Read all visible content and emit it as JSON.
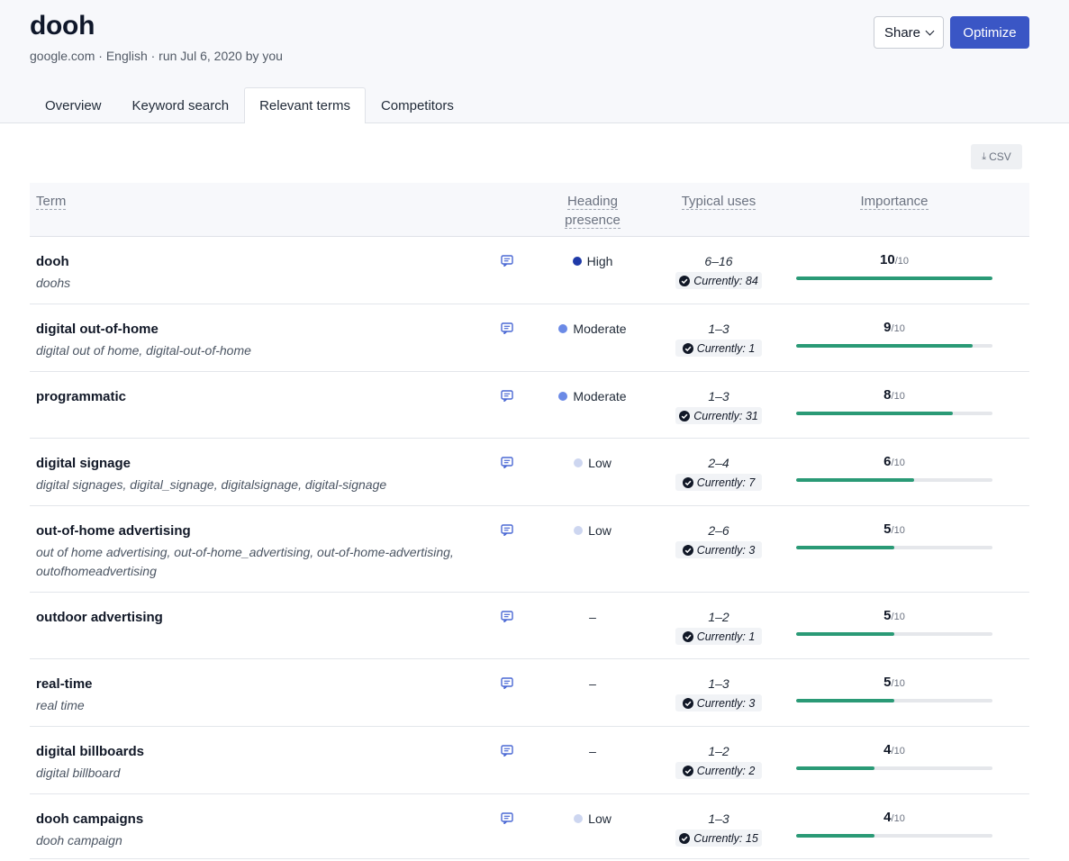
{
  "header": {
    "title": "dooh",
    "subtitle": "google.com · English · run Jul 6, 2020 by you",
    "share_label": "Share",
    "optimize_label": "Optimize",
    "accent_color": "#3a56c5"
  },
  "tabs": [
    {
      "label": "Overview",
      "active": false
    },
    {
      "label": "Keyword search",
      "active": false
    },
    {
      "label": "Relevant terms",
      "active": true
    },
    {
      "label": "Competitors",
      "active": false
    }
  ],
  "toolbar": {
    "csv_label": "CSV",
    "csv_icon": "download-icon"
  },
  "table": {
    "columns": {
      "term": "Term",
      "heading_line1": "Heading",
      "heading_line2": "presence",
      "uses": "Typical uses",
      "importance": "Importance"
    },
    "importance_max_label": "/10",
    "importance_max": 10,
    "heading_colors": {
      "High": "#1f3aa8",
      "Moderate": "#6b8ae6",
      "Low": "#cdd6f0"
    },
    "rows": [
      {
        "term": "dooh",
        "variants": "doohs",
        "heading": "High",
        "range": "6–16",
        "current": "Currently: 84",
        "importance": 10
      },
      {
        "term": "digital out-of-home",
        "variants": "digital out of home, digital-out-of-home",
        "heading": "Moderate",
        "range": "1–3",
        "current": "Currently: 1",
        "importance": 9
      },
      {
        "term": "programmatic",
        "variants": "",
        "heading": "Moderate",
        "range": "1–3",
        "current": "Currently: 31",
        "importance": 8
      },
      {
        "term": "digital signage",
        "variants": "digital signages, digital_signage, digitalsignage, digital-signage",
        "heading": "Low",
        "range": "2–4",
        "current": "Currently: 7",
        "importance": 6
      },
      {
        "term": "out-of-home advertising",
        "variants": "out of home advertising, out-of-home_advertising, out-of-home-advertising, outofhomeadvertising",
        "heading": "Low",
        "range": "2–6",
        "current": "Currently: 3",
        "importance": 5
      },
      {
        "term": "outdoor advertising",
        "variants": "",
        "heading": "–",
        "range": "1–2",
        "current": "Currently: 1",
        "importance": 5
      },
      {
        "term": "real-time",
        "variants": "real time",
        "heading": "–",
        "range": "1–3",
        "current": "Currently: 3",
        "importance": 5
      },
      {
        "term": "digital billboards",
        "variants": "digital billboard",
        "heading": "–",
        "range": "1–2",
        "current": "Currently: 2",
        "importance": 4
      },
      {
        "term": "dooh campaigns",
        "variants": "dooh campaign",
        "heading": "Low",
        "range": "1–3",
        "current": "Currently: 15",
        "importance": 4
      }
    ]
  }
}
